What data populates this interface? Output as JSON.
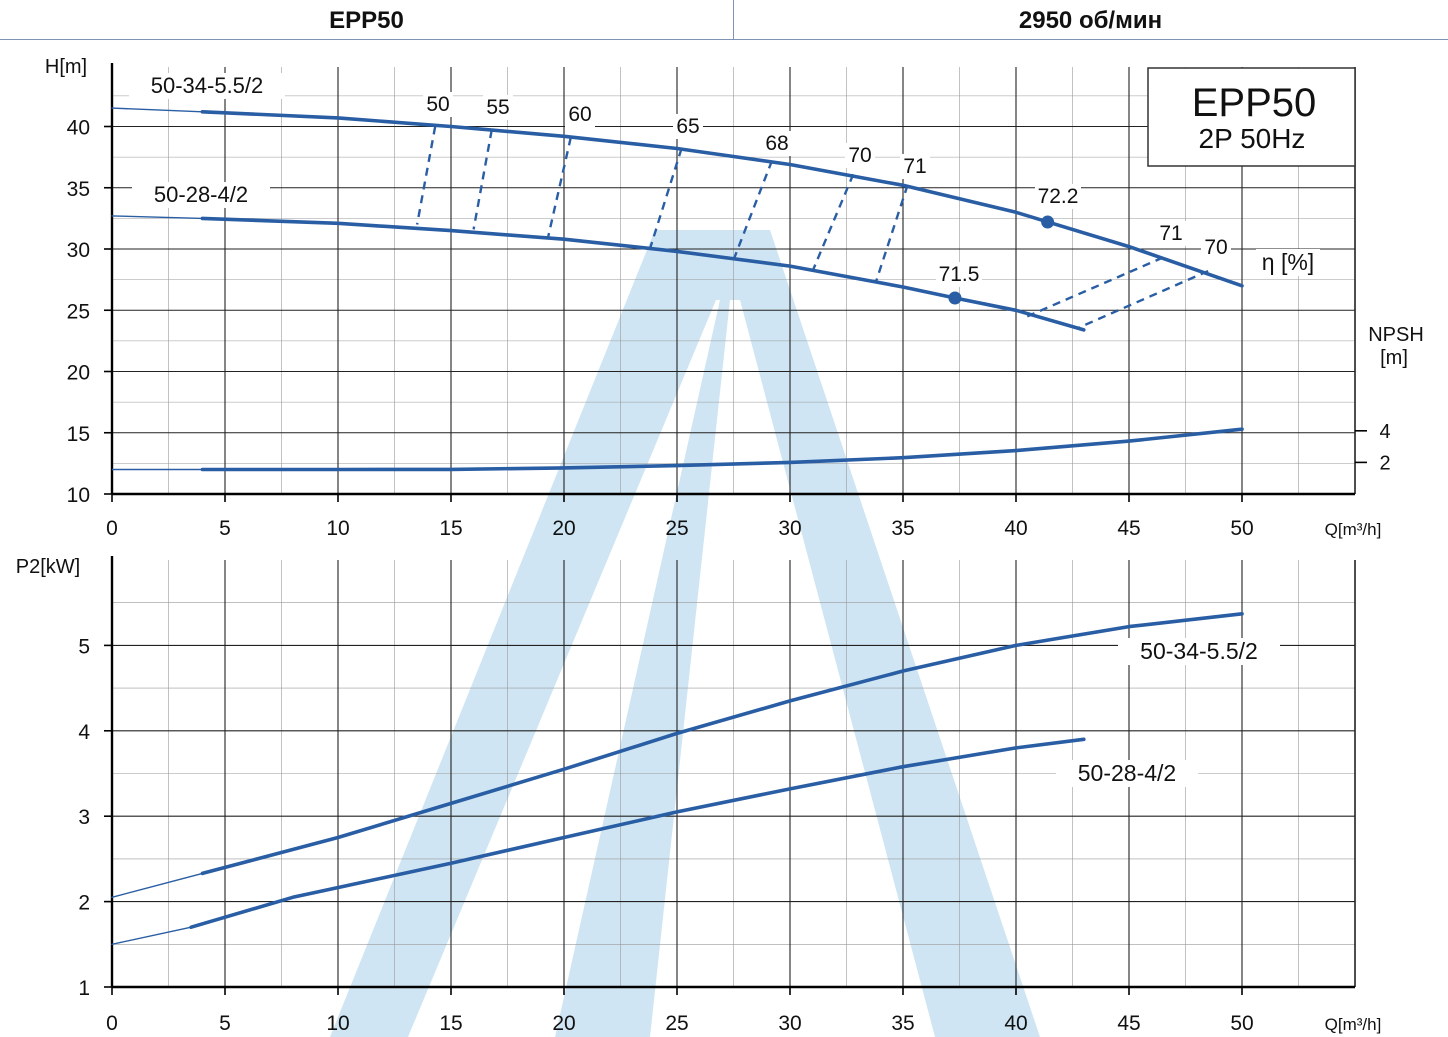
{
  "header": {
    "model": "EPP50",
    "speed": "2950 об/мин"
  },
  "badge": {
    "line1": "EPP50",
    "line2": "2P  50Hz"
  },
  "colors": {
    "curve": "#2a5ea4",
    "watermark": "#cfe5f3",
    "grid": "#222222"
  },
  "chart_data": [
    {
      "type": "line",
      "ylabel": "H[m]",
      "xlabel": "Q[m³/h]",
      "xlim": [
        0,
        50
      ],
      "ylim": [
        10,
        45
      ],
      "x_ticks": [
        0,
        5,
        10,
        15,
        20,
        25,
        30,
        35,
        40,
        45,
        50
      ],
      "y_ticks": [
        10,
        15,
        20,
        25,
        30,
        35,
        40
      ],
      "grid": true,
      "series": [
        {
          "name": "50-34-5.5/2",
          "x": [
            0,
            4,
            10,
            15,
            20,
            25,
            30,
            35,
            40,
            45,
            50
          ],
          "y": [
            41.5,
            41.2,
            40.7,
            40.0,
            39.2,
            38.2,
            36.9,
            35.2,
            33.0,
            30.2,
            27.0
          ]
        },
        {
          "name": "50-28-4/2",
          "x": [
            0,
            4,
            10,
            15,
            20,
            25,
            30,
            35,
            37.3,
            40,
            43
          ],
          "y": [
            32.7,
            32.5,
            32.1,
            31.5,
            30.8,
            29.8,
            28.6,
            26.9,
            26.0,
            25.0,
            23.4
          ]
        }
      ],
      "npsh": {
        "label_top": "NPSH",
        "label_bottom": "[m]",
        "ticks": [
          2,
          4
        ],
        "x": [
          0,
          4,
          10,
          15,
          20,
          25,
          30,
          35,
          40,
          45,
          50
        ],
        "y": [
          1.55,
          1.55,
          1.55,
          1.56,
          1.65,
          1.8,
          2.0,
          2.3,
          2.75,
          3.35,
          4.1
        ]
      },
      "efficiency": {
        "label": "η [%]",
        "lines": [
          {
            "label": "50",
            "top": [
              14.3,
              40.0
            ],
            "bottom": [
              13.5,
              32.0
            ]
          },
          {
            "label": "55",
            "top": [
              16.8,
              39.7
            ],
            "bottom": [
              16.0,
              31.6
            ]
          },
          {
            "label": "60",
            "top": [
              20.3,
              39.1
            ],
            "bottom": [
              19.3,
              31.0
            ]
          },
          {
            "label": "65",
            "top": [
              25.2,
              38.2
            ],
            "bottom": [
              23.8,
              30.0
            ]
          },
          {
            "label": "68",
            "top": [
              29.2,
              37.2
            ],
            "bottom": [
              27.5,
              29.1
            ]
          },
          {
            "label": "70",
            "top": [
              32.8,
              36.1
            ],
            "bottom": [
              31.0,
              28.2
            ]
          },
          {
            "label": "71",
            "top": [
              35.2,
              35.2
            ],
            "bottom": [
              33.8,
              27.3
            ]
          },
          {
            "label": "71",
            "top": [
              46.5,
              29.3
            ],
            "bottom": [
              40.5,
              24.5
            ]
          },
          {
            "label": "70",
            "top": [
              48.5,
              28.2
            ],
            "bottom": [
              42.8,
              23.6
            ]
          }
        ],
        "bep": [
          {
            "label": "72.2",
            "x": 41.4,
            "y": 32.2
          },
          {
            "label": "71.5",
            "x": 37.3,
            "y": 26.0
          }
        ]
      }
    },
    {
      "type": "line",
      "ylabel": "P2[kW]",
      "xlabel": "Q[m³/h]",
      "xlim": [
        0,
        50
      ],
      "ylim": [
        1,
        6
      ],
      "x_ticks": [
        0,
        5,
        10,
        15,
        20,
        25,
        30,
        35,
        40,
        45,
        50
      ],
      "y_ticks": [
        1,
        2,
        3,
        4,
        5
      ],
      "grid": true,
      "series": [
        {
          "name": "50-34-5.5/2",
          "x": [
            0,
            4,
            10,
            15,
            20,
            25,
            30,
            35,
            40,
            45,
            50
          ],
          "y": [
            2.05,
            2.33,
            2.75,
            3.15,
            3.55,
            3.97,
            4.35,
            4.7,
            5.0,
            5.22,
            5.37
          ]
        },
        {
          "name": "50-28-4/2",
          "x": [
            0,
            3.5,
            8,
            15,
            20,
            25,
            30,
            35,
            40,
            43
          ],
          "y": [
            1.5,
            1.7,
            2.05,
            2.45,
            2.75,
            3.05,
            3.32,
            3.58,
            3.8,
            3.9
          ]
        }
      ]
    }
  ]
}
